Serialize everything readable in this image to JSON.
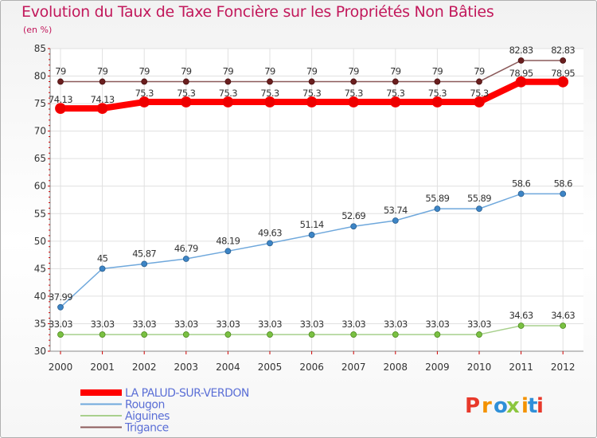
{
  "title": "Evolution du Taux de Taxe Foncière sur les Propriétés Non Bâties",
  "unit_label": "(en %)",
  "brand_text": "Proxiti",
  "colors": {
    "title": "#c2185b",
    "brand_letters": [
      "#e8392b",
      "#f39200",
      "#2f8fd8",
      "#8cc63f",
      "#f39200",
      "#2f8fd8",
      "#e8392b"
    ]
  },
  "chart_data": {
    "type": "line",
    "title": "Evolution du Taux de Taxe Foncière sur les Propriétés Non Bâties",
    "ylabel": "(en %)",
    "x": [
      "2000",
      "2001",
      "2002",
      "2003",
      "2004",
      "2005",
      "2006",
      "2007",
      "2008",
      "2009",
      "2010",
      "2011",
      "2012"
    ],
    "ylim": [
      30,
      85
    ],
    "yticks": [
      "30",
      "35",
      "40",
      "45",
      "50",
      "55",
      "60",
      "65",
      "70",
      "75",
      "80",
      "85"
    ],
    "grid": true,
    "legend_position": "bottom-left",
    "series": [
      {
        "name": "LA PALUD-SUR-VERDON",
        "color": "#ff0000",
        "values": [
          74.13,
          74.13,
          75.3,
          75.3,
          75.3,
          75.3,
          75.3,
          75.3,
          75.3,
          75.3,
          75.3,
          78.95,
          78.95
        ],
        "labels": [
          "74.13",
          "74.13",
          "75.3",
          "75.3",
          "75.3",
          "75.3",
          "75.3",
          "75.3",
          "75.3",
          "75.3",
          "75.3",
          "78.95",
          "78.95"
        ]
      },
      {
        "name": "Rougon",
        "color": "#5b9bd5",
        "values": [
          37.99,
          45,
          45.87,
          46.79,
          48.19,
          49.63,
          51.14,
          52.69,
          53.74,
          55.89,
          55.89,
          58.6,
          58.6
        ],
        "labels": [
          "37.99",
          "45",
          "45.87",
          "46.79",
          "48.19",
          "49.63",
          "51.14",
          "52.69",
          "53.74",
          "55.89",
          "55.89",
          "58.6",
          "58.6"
        ]
      },
      {
        "name": "Aiguines",
        "color": "#99cc66",
        "values": [
          33.03,
          33.03,
          33.03,
          33.03,
          33.03,
          33.03,
          33.03,
          33.03,
          33.03,
          33.03,
          33.03,
          34.63,
          34.63
        ],
        "labels": [
          "33.03",
          "33.03",
          "33.03",
          "33.03",
          "33.03",
          "33.03",
          "33.03",
          "33.03",
          "33.03",
          "33.03",
          "33.03",
          "34.63",
          "34.63"
        ]
      },
      {
        "name": "Trigance",
        "color": "#8b4a4a",
        "values": [
          79,
          79,
          79,
          79,
          79,
          79,
          79,
          79,
          79,
          79,
          79,
          82.83,
          82.83
        ],
        "labels": [
          "79",
          "79",
          "79",
          "79",
          "79",
          "79",
          "79",
          "79",
          "79",
          "79",
          "79",
          "82.83",
          "82.83"
        ]
      }
    ]
  }
}
